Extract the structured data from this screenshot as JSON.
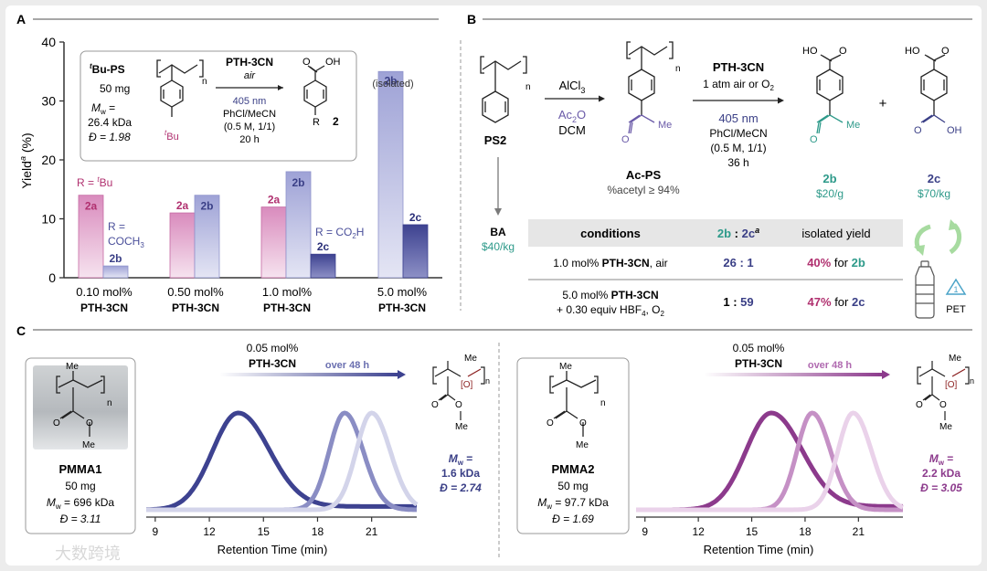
{
  "panels": {
    "A": "A",
    "B": "B",
    "C": "C"
  },
  "colors": {
    "magenta": "#b0306f",
    "navy": "#3a3f86",
    "teal": "#2e9a8a",
    "purple_text": "#6a5aa8",
    "green_arrow": "#9fd69a",
    "pet_blue": "#4aa3c8"
  },
  "panelA": {
    "inset": {
      "substrate": "tBu-PS",
      "mass": "50 mg",
      "mw_label": "Mw =",
      "mw_value": "26.4 kDa",
      "dispersity": "Đ = 1.98",
      "reagent": "PTH-3CN",
      "atmosphere": "air",
      "light": "405 nm",
      "solvent": "PhCl/MeCN",
      "conc": "(0.5 M, 1/1)",
      "time": "20 h",
      "sub_tbu": "tBu",
      "product_R": "R",
      "product_num": "2",
      "oh": "OH",
      "o": "O",
      "n": "n"
    },
    "annotations": {
      "r_tbu": "R = tBu",
      "r_coch3_1": "R =",
      "r_coch3_2": "COCH3",
      "r_co2h": "R = CO2H",
      "isolated": "(isolated)"
    },
    "chart_data": {
      "type": "bar",
      "ylabel": "Yielda (%)",
      "ylim": [
        0,
        40
      ],
      "yticks": [
        0,
        10,
        20,
        30,
        40
      ],
      "categories": [
        "0.10 mol%",
        "0.50 mol%",
        "1.0 mol%",
        "5.0 mol%"
      ],
      "category_sub": "PTH-3CN",
      "series": [
        {
          "name": "2a",
          "values": [
            14,
            11,
            12,
            null
          ]
        },
        {
          "name": "2b",
          "values": [
            2,
            14,
            18,
            35
          ]
        },
        {
          "name": "2c",
          "values": [
            null,
            null,
            4,
            9
          ]
        }
      ]
    }
  },
  "panelB": {
    "ps2": "PS2",
    "ba": "BA",
    "ba_price": "$40/kg",
    "step1_reagent": "AlCl3",
    "step1_reagent2": "Ac2O",
    "step1_solvent": "DCM",
    "acps": "Ac-PS",
    "acps_note": "%acetyl ≥ 94%",
    "step2_reagent": "PTH-3CN",
    "step2_atm": "1 atm air or O2",
    "step2_light": "405 nm",
    "step2_solvent": "PhCl/MeCN",
    "step2_conc": "(0.5 M, 1/1)",
    "step2_time": "36 h",
    "plus": "+",
    "p2b": "2b",
    "p2b_price": "$20/g",
    "p2c": "2c",
    "p2c_price": "$70/kg",
    "ho": "HO",
    "oh": "OH",
    "o": "O",
    "me": "Me",
    "n": "n",
    "pet": "PET",
    "table": {
      "headers": [
        "conditions",
        "2b : 2ca",
        "isolated yield"
      ],
      "rows": [
        {
          "cond1": "1.0 mol% PTH-3CN, air",
          "cond2": "",
          "ratio": "26 : 1",
          "yield": "40% for 2b"
        },
        {
          "cond1": "5.0 mol% PTH-3CN",
          "cond2": "+ 0.30 equiv HBF4, O2",
          "ratio": "1 : 59",
          "yield": "47% for 2c"
        }
      ]
    }
  },
  "panelC": {
    "left": {
      "catalyst": "0.05 mol%",
      "reagent": "PTH-3CN",
      "arrow_label": "over 48 h",
      "polymer": "PMMA1",
      "mass": "50 mg",
      "mw": "Mw = 696 kDa",
      "disp": "Đ = 3.11",
      "result_mw_label": "Mw =",
      "result_mw": "1.6 kDa",
      "result_disp": "Đ = 2.74",
      "xlabel": "Retention Time (min)",
      "xticks": [
        "9",
        "12",
        "15",
        "18",
        "21"
      ]
    },
    "right": {
      "catalyst": "0.05 mol%",
      "reagent": "PTH-3CN",
      "arrow_label": "over 48 h",
      "polymer": "PMMA2",
      "mass": "50 mg",
      "mw": "Mw = 97.7 kDa",
      "disp": "Đ = 1.69",
      "result_mw_label": "Mw =",
      "result_mw": "2.2 kDa",
      "result_disp": "Đ = 3.05",
      "xlabel": "Retention Time (min)",
      "xticks": [
        "9",
        "12",
        "15",
        "18",
        "21"
      ]
    },
    "me": "Me",
    "ox": "[O]",
    "o": "O",
    "n": "n",
    "chart_data": [
      {
        "type": "line",
        "xlabel": "Retention Time (min)",
        "xlim": [
          8.5,
          23.5
        ],
        "series_peaks_min": [
          13.6,
          19.5,
          21.0
        ]
      },
      {
        "type": "line",
        "xlabel": "Retention Time (min)",
        "xlim": [
          8.5,
          23.5
        ],
        "series_peaks_min": [
          16.1,
          18.4,
          20.7
        ]
      }
    ]
  },
  "watermark": "大数跨境"
}
